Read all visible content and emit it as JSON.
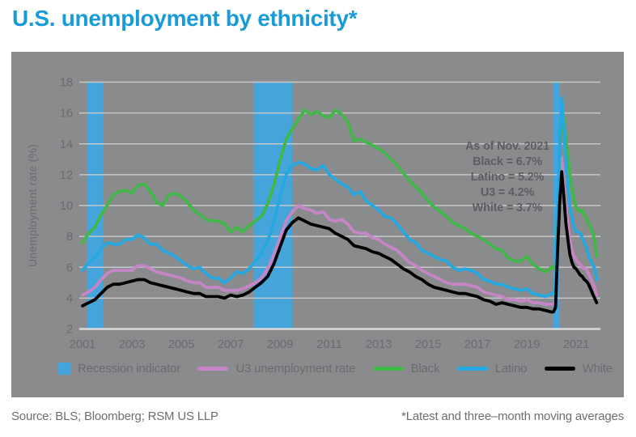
{
  "title": "U.S. unemployment by ethnicity*",
  "annotation": {
    "lines": [
      "As of Nov. 2021",
      "Black = 6.7%",
      "Latino = 5.2%",
      "U3 = 4.2%",
      "White = 3.7%"
    ]
  },
  "legend": {
    "items": [
      {
        "label": "Recession indicator",
        "swatch": "square",
        "color": "#45a5da"
      },
      {
        "label": "U3 unemployment rate",
        "swatch": "line",
        "color": "#c685c6"
      },
      {
        "label": "Black",
        "swatch": "line",
        "color": "#41b649"
      },
      {
        "label": "Latino",
        "swatch": "line",
        "color": "#25a8e0"
      },
      {
        "label": "White",
        "swatch": "line",
        "color": "#000000"
      }
    ]
  },
  "footer": {
    "source": "Source: BLS; Bloomberg; RSM US LLP",
    "note": "*Latest and three–month moving averages"
  },
  "colors": {
    "title": "#189bd7",
    "panel_bg": "#8a8b8d",
    "tick_text": "#6b6c6f",
    "annotation_text": "#5d5e61",
    "legend_text": "#6b6c6f",
    "footer_text": "#6d6e71",
    "gridline": "#c6c7c8",
    "axis_line": "#d9dadb",
    "recession_band": "#45a5da"
  },
  "chart_data": {
    "type": "line",
    "title": "U.S. unemployment by ethnicity*",
    "xlabel": "",
    "ylabel": "Unemployment rate (%)",
    "ylim": [
      2,
      18
    ],
    "yticks": [
      2,
      4,
      6,
      8,
      10,
      12,
      14,
      16,
      18
    ],
    "xticks": [
      2001,
      2003,
      2005,
      2007,
      2009,
      2011,
      2013,
      2015,
      2017,
      2019,
      2021
    ],
    "xlim": [
      2000.85,
      2022.1
    ],
    "grid": "horizontal",
    "legend_position": "bottom",
    "note": "*Latest and three-month moving averages",
    "recession_bands": [
      [
        2001.17,
        2001.83
      ],
      [
        2007.92,
        2009.5
      ],
      [
        2020.08,
        2020.33
      ]
    ],
    "x": [
      2001,
      2001.25,
      2001.5,
      2001.75,
      2002,
      2002.25,
      2002.5,
      2002.75,
      2003,
      2003.25,
      2003.5,
      2003.75,
      2004,
      2004.25,
      2004.5,
      2004.75,
      2005,
      2005.25,
      2005.5,
      2005.75,
      2006,
      2006.25,
      2006.5,
      2006.75,
      2007,
      2007.25,
      2007.5,
      2007.75,
      2008,
      2008.25,
      2008.5,
      2008.75,
      2009,
      2009.25,
      2009.5,
      2009.75,
      2010,
      2010.25,
      2010.5,
      2010.75,
      2011,
      2011.25,
      2011.5,
      2011.75,
      2012,
      2012.25,
      2012.5,
      2012.75,
      2013,
      2013.25,
      2013.5,
      2013.75,
      2014,
      2014.25,
      2014.5,
      2014.75,
      2015,
      2015.25,
      2015.5,
      2015.75,
      2016,
      2016.25,
      2016.5,
      2016.75,
      2017,
      2017.25,
      2017.5,
      2017.75,
      2018,
      2018.25,
      2018.5,
      2018.75,
      2019,
      2019.25,
      2019.5,
      2019.75,
      2020,
      2020.083,
      2020.167,
      2020.25,
      2020.333,
      2020.417,
      2020.5,
      2020.583,
      2020.667,
      2020.75,
      2020.833,
      2020.917,
      2021,
      2021.083,
      2021.167,
      2021.25,
      2021.333,
      2021.417,
      2021.5,
      2021.583,
      2021.667,
      2021.75,
      2021.833
    ],
    "series": [
      {
        "name": "U3 unemployment rate",
        "color": "#c685c6",
        "values": [
          4.2,
          4.4,
          4.7,
          5.2,
          5.6,
          5.8,
          5.8,
          5.8,
          5.8,
          6.1,
          6.1,
          5.9,
          5.7,
          5.6,
          5.5,
          5.4,
          5.3,
          5.1,
          5.0,
          5.0,
          4.7,
          4.7,
          4.7,
          4.5,
          4.5,
          4.5,
          4.6,
          4.8,
          5.0,
          5.3,
          5.9,
          6.8,
          7.9,
          9.0,
          9.6,
          10.0,
          9.8,
          9.7,
          9.5,
          9.6,
          9.1,
          9.0,
          9.1,
          8.8,
          8.3,
          8.2,
          8.2,
          7.9,
          7.8,
          7.5,
          7.3,
          7.1,
          6.7,
          6.3,
          6.1,
          5.8,
          5.6,
          5.4,
          5.2,
          5.0,
          4.9,
          4.9,
          4.9,
          4.8,
          4.7,
          4.4,
          4.3,
          4.2,
          4.1,
          3.9,
          3.9,
          3.8,
          3.9,
          3.7,
          3.7,
          3.6,
          3.6,
          3.6,
          3.8,
          7.6,
          10.8,
          13.1,
          11.5,
          9.9,
          8.8,
          7.7,
          7.1,
          6.7,
          6.5,
          6.3,
          6.2,
          6.0,
          5.9,
          5.9,
          5.6,
          5.3,
          5.0,
          4.7,
          4.2
        ]
      },
      {
        "name": "Black",
        "color": "#41b649",
        "values": [
          7.6,
          8.2,
          8.6,
          9.4,
          10.0,
          10.7,
          10.9,
          11.0,
          10.8,
          11.3,
          11.4,
          10.9,
          10.2,
          10.0,
          10.7,
          10.8,
          10.6,
          10.2,
          9.7,
          9.4,
          9.1,
          9.0,
          9.0,
          8.8,
          8.3,
          8.6,
          8.3,
          8.7,
          9.0,
          9.3,
          10.1,
          11.3,
          12.9,
          14.3,
          15.0,
          15.6,
          16.2,
          15.9,
          16.1,
          15.8,
          15.7,
          16.2,
          15.9,
          15.4,
          14.2,
          14.3,
          14.1,
          13.9,
          13.7,
          13.4,
          13.0,
          12.6,
          12.1,
          11.6,
          11.2,
          10.8,
          10.3,
          9.9,
          9.6,
          9.3,
          8.9,
          8.7,
          8.5,
          8.2,
          8.0,
          7.8,
          7.5,
          7.2,
          7.1,
          6.6,
          6.4,
          6.4,
          6.7,
          6.2,
          5.9,
          5.7,
          6.0,
          5.9,
          6.2,
          9.7,
          13.4,
          16.3,
          15.6,
          14.3,
          13.2,
          12.0,
          11.1,
          10.4,
          9.9,
          9.7,
          9.6,
          9.7,
          9.4,
          9.2,
          8.8,
          8.6,
          8.3,
          7.7,
          6.7
        ]
      },
      {
        "name": "Latino",
        "color": "#25a8e0",
        "values": [
          5.8,
          6.3,
          6.6,
          7.2,
          7.6,
          7.5,
          7.5,
          7.8,
          7.8,
          8.1,
          7.9,
          7.5,
          7.5,
          7.1,
          6.9,
          6.7,
          6.4,
          6.1,
          5.9,
          6.0,
          5.6,
          5.3,
          5.3,
          5.0,
          5.3,
          5.7,
          5.6,
          5.9,
          6.4,
          6.9,
          7.7,
          8.9,
          10.6,
          12.0,
          12.6,
          12.8,
          12.7,
          12.4,
          12.3,
          12.6,
          12.0,
          11.7,
          11.4,
          11.2,
          10.7,
          10.9,
          10.3,
          10.0,
          9.7,
          9.3,
          9.2,
          8.8,
          8.3,
          7.8,
          7.6,
          7.1,
          6.9,
          6.7,
          6.5,
          6.4,
          6.0,
          5.8,
          5.9,
          5.8,
          5.6,
          5.2,
          5.1,
          4.9,
          4.9,
          4.7,
          4.6,
          4.5,
          4.6,
          4.3,
          4.2,
          4.1,
          4.3,
          4.3,
          4.7,
          9.8,
          14.2,
          17.0,
          15.0,
          12.6,
          11.2,
          9.9,
          9.2,
          8.6,
          8.3,
          8.3,
          8.2,
          7.9,
          7.6,
          7.3,
          6.8,
          6.4,
          6.2,
          5.9,
          5.2
        ]
      },
      {
        "name": "White",
        "color": "#000000",
        "values": [
          3.5,
          3.7,
          3.9,
          4.3,
          4.7,
          4.9,
          4.9,
          5.0,
          5.1,
          5.2,
          5.2,
          5.0,
          4.9,
          4.8,
          4.7,
          4.6,
          4.5,
          4.4,
          4.3,
          4.3,
          4.1,
          4.1,
          4.1,
          4.0,
          4.2,
          4.1,
          4.2,
          4.4,
          4.7,
          5.0,
          5.4,
          6.2,
          7.3,
          8.4,
          8.9,
          9.2,
          9.0,
          8.8,
          8.7,
          8.6,
          8.5,
          8.2,
          8.0,
          7.8,
          7.4,
          7.3,
          7.2,
          7.0,
          6.9,
          6.7,
          6.5,
          6.2,
          5.9,
          5.7,
          5.4,
          5.2,
          4.9,
          4.7,
          4.6,
          4.5,
          4.4,
          4.3,
          4.3,
          4.2,
          4.1,
          3.9,
          3.8,
          3.6,
          3.7,
          3.6,
          3.5,
          3.4,
          3.4,
          3.3,
          3.3,
          3.2,
          3.1,
          3.1,
          3.4,
          7.1,
          10.2,
          12.2,
          10.6,
          8.9,
          7.8,
          6.8,
          6.3,
          6.0,
          5.9,
          5.7,
          5.5,
          5.4,
          5.2,
          5.1,
          4.9,
          4.6,
          4.3,
          4.0,
          3.7
        ]
      }
    ]
  }
}
